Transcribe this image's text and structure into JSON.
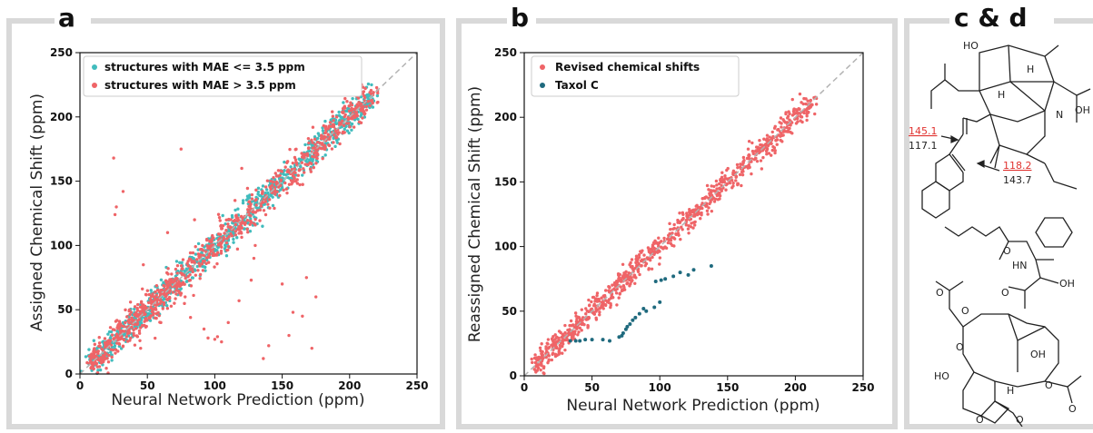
{
  "panels": {
    "a": {
      "letter": "a"
    },
    "b": {
      "letter": "b"
    },
    "cd": {
      "letter": "c & d"
    }
  },
  "colors": {
    "teal": "#41bcbd",
    "red": "#ef6467",
    "dark_teal": "#1f6a7e",
    "diagonal": "#b3b3b3",
    "frame": "#d9d9d9",
    "annotation_red": "#e0322f"
  },
  "chart_data": [
    {
      "type": "scatter",
      "title": "",
      "xlabel": "Neural Network Prediction (ppm)",
      "ylabel": "Assigned Chemical Shift (ppm)",
      "xlim": [
        0,
        250
      ],
      "ylim": [
        0,
        250
      ],
      "xticks": [
        0,
        50,
        100,
        150,
        200,
        250
      ],
      "yticks": [
        0,
        50,
        100,
        150,
        200,
        250
      ],
      "diagonal_reference": true,
      "legend_position": "top-left",
      "series": [
        {
          "name": "structures with MAE <= 3.5 ppm",
          "color": "#41bcbd",
          "dense_band": [
            8,
            218
          ],
          "band_spread": 5
        },
        {
          "name": "structures with MAE > 3.5 ppm",
          "color": "#ef6467",
          "dense_band": [
            8,
            218
          ],
          "band_spread": 6,
          "outliers": [
            [
              25,
              168
            ],
            [
              27,
              130
            ],
            [
              26,
              124
            ],
            [
              32,
              142
            ],
            [
              38,
              48
            ],
            [
              47,
              85
            ],
            [
              55,
              60
            ],
            [
              60,
              40
            ],
            [
              75,
              175
            ],
            [
              78,
              60
            ],
            [
              82,
              44
            ],
            [
              92,
              35
            ],
            [
              95,
              28
            ],
            [
              100,
              27
            ],
            [
              102,
              29
            ],
            [
              105,
              25
            ],
            [
              110,
              40
            ],
            [
              118,
              57
            ],
            [
              127,
              73
            ],
            [
              129,
              90
            ],
            [
              136,
              12
            ],
            [
              140,
              22
            ],
            [
              150,
              70
            ],
            [
              155,
              30
            ],
            [
              158,
              48
            ],
            [
              165,
              45
            ],
            [
              168,
              75
            ],
            [
              172,
              20
            ],
            [
              175,
              60
            ],
            [
              160,
              150
            ],
            [
              120,
              160
            ],
            [
              40,
              30
            ],
            [
              45,
              20
            ],
            [
              65,
              110
            ],
            [
              70,
              55
            ],
            [
              85,
              120
            ],
            [
              115,
              135
            ],
            [
              130,
              100
            ]
          ]
        }
      ]
    },
    {
      "type": "scatter",
      "title": "",
      "xlabel": "Neural Network Prediction (ppm)",
      "ylabel": "Reassigned Chemical Shift (ppm)",
      "xlim": [
        0,
        250
      ],
      "ylim": [
        0,
        250
      ],
      "xticks": [
        0,
        50,
        100,
        150,
        200,
        250
      ],
      "yticks": [
        0,
        50,
        100,
        150,
        200,
        250
      ],
      "diagonal_reference": true,
      "legend_position": "top-left",
      "series": [
        {
          "name": "Revised chemical shifts",
          "color": "#ef6467",
          "dense_band": [
            8,
            215
          ],
          "band_spread": 4
        },
        {
          "name": "Taxol C",
          "color": "#1f6a7e",
          "points": [
            [
              34,
              27
            ],
            [
              38,
              27
            ],
            [
              41,
              27
            ],
            [
              45,
              28
            ],
            [
              50,
              28
            ],
            [
              58,
              28
            ],
            [
              63,
              27
            ],
            [
              70,
              30
            ],
            [
              72,
              31
            ],
            [
              73,
              33
            ],
            [
              75,
              36
            ],
            [
              76,
              38
            ],
            [
              78,
              40
            ],
            [
              80,
              43
            ],
            [
              82,
              45
            ],
            [
              85,
              48
            ],
            [
              90,
              50
            ],
            [
              96,
              53
            ],
            [
              100,
              57
            ],
            [
              97,
              73
            ],
            [
              101,
              74
            ],
            [
              104,
              75
            ],
            [
              110,
              77
            ],
            [
              115,
              80
            ],
            [
              125,
              82
            ],
            [
              138,
              85
            ],
            [
              121,
              78
            ],
            [
              88,
              52
            ]
          ]
        }
      ]
    }
  ],
  "structures": {
    "aconitine_like": {
      "atom_labels": [
        "HO",
        "H",
        "H",
        "N",
        "OH"
      ],
      "red_values": [
        "145.1",
        "118.2"
      ],
      "black_values": [
        "117.1",
        "143.7"
      ]
    },
    "taxol_c": {
      "atom_labels": [
        "HN",
        "OH",
        "O",
        "O",
        "OH",
        "HO",
        "H",
        "O",
        "O",
        "O",
        "O",
        "O",
        "O",
        "O"
      ]
    }
  }
}
